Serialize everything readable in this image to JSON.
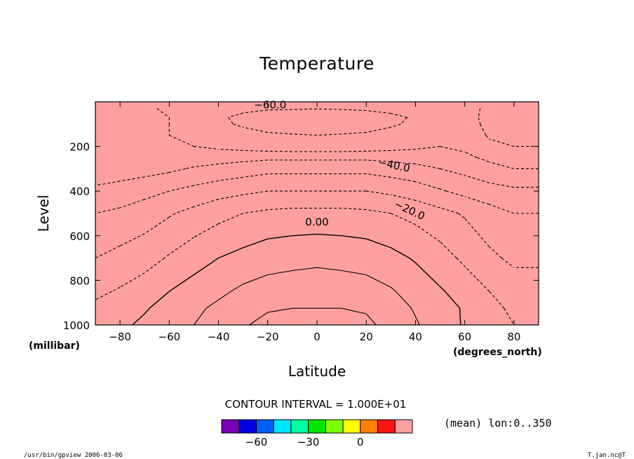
{
  "chart_data": {
    "type": "heatmap",
    "title": "Temperature",
    "xlabel": "Latitude",
    "ylabel": "Level",
    "x_unit": "(degrees_north)",
    "y_unit": "(millibar)",
    "xlim": [
      -90,
      90
    ],
    "ylim": [
      1000,
      0
    ],
    "x_ticks": [
      "-80",
      "-60",
      "-40",
      "-20",
      "0",
      "20",
      "40",
      "60",
      "80"
    ],
    "y_ticks": [
      "200",
      "400",
      "600",
      "800",
      "1000"
    ],
    "contour_interval": "CONTOUR INTERVAL = 1.000E+01",
    "contour_labels": [
      "-60.0",
      "-40.0",
      "-20.0",
      "0.00"
    ],
    "colorbar": {
      "colors": [
        "#7a00b4",
        "#0000e0",
        "#0060ff",
        "#00e6ff",
        "#00ffa0",
        "#00e600",
        "#80ff00",
        "#ffff00",
        "#ff8000",
        "#ff1414",
        "#ffa0a0"
      ],
      "tick_labels": [
        "-60",
        "-30",
        "0"
      ],
      "bounds": [
        -80,
        -70,
        -60,
        -50,
        -40,
        -30,
        -20,
        -10,
        0,
        10,
        20,
        30
      ]
    },
    "levels_mb": [
      30,
      70,
      100,
      150,
      200,
      250,
      300,
      400,
      500,
      700,
      850,
      925,
      1000
    ],
    "latitudes": [
      -90,
      -80,
      -70,
      -60,
      -50,
      -40,
      -30,
      -20,
      -10,
      0,
      10,
      20,
      30,
      40,
      50,
      60,
      70,
      80,
      90
    ],
    "values": [
      [
        -43,
        -46,
        -49,
        -51,
        -53,
        -55,
        -57,
        -58,
        -58,
        -59,
        -58,
        -57,
        -55,
        -53,
        -51,
        -55,
        -63,
        -66,
        -66
      ],
      [
        -44,
        -46,
        -48,
        -50,
        -53,
        -58,
        -63,
        -70,
        -75,
        -78,
        -75,
        -70,
        -64,
        -58,
        -53,
        -55,
        -64,
        -67,
        -67
      ],
      [
        -44,
        -46,
        -48,
        -50,
        -53,
        -57,
        -62,
        -66,
        -68,
        -69,
        -68,
        -66,
        -62,
        -57,
        -53,
        -55,
        -63,
        -66,
        -66
      ],
      [
        -45,
        -46,
        -48,
        -50,
        -52,
        -53,
        -55,
        -58,
        -59,
        -60,
        -59,
        -58,
        -55,
        -53,
        -52,
        -54,
        -61,
        -64,
        -64
      ],
      [
        -46,
        -46,
        -47,
        -48,
        -50,
        -52,
        -54,
        -56,
        -57,
        -57,
        -57,
        -56,
        -54,
        -52,
        -50,
        -52,
        -58,
        -60,
        -60
      ],
      [
        -48,
        -47,
        -47,
        -46,
        -45,
        -44,
        -43,
        -42,
        -42,
        -42,
        -42,
        -42,
        -43,
        -44,
        -45,
        -48,
        -52,
        -55,
        -55
      ],
      [
        -46,
        -45,
        -44,
        -42,
        -39,
        -37,
        -35,
        -33,
        -33,
        -33,
        -33,
        -33,
        -35,
        -37,
        -40,
        -43,
        -47,
        -50,
        -50
      ],
      [
        -38,
        -36,
        -33,
        -30,
        -27,
        -24,
        -22,
        -20,
        -20,
        -20,
        -20,
        -20,
        -22,
        -25,
        -29,
        -33,
        -36,
        -38,
        -38
      ],
      [
        -30,
        -28,
        -25,
        -21,
        -17,
        -13,
        -10,
        -8,
        -7,
        -7,
        -7,
        -8,
        -10,
        -13,
        -17,
        -21,
        -26,
        -30,
        -30
      ],
      [
        -20,
        -17,
        -14,
        -9,
        -4,
        0,
        3,
        6,
        7,
        8,
        7,
        6,
        3,
        -1,
        -6,
        -12,
        -18,
        -22,
        -22
      ],
      [
        -12,
        -9,
        -5,
        0,
        4,
        8,
        12,
        14,
        15,
        15,
        15,
        14,
        11,
        6,
        1,
        -4,
        -10,
        -15,
        -15
      ],
      [
        -8,
        -5,
        -1,
        4,
        8,
        12,
        16,
        19,
        20,
        20,
        20,
        19,
        15,
        9,
        4,
        -1,
        -7,
        -12,
        -12
      ],
      [
        -5,
        -2,
        2,
        6,
        10,
        15,
        19,
        23,
        24,
        25,
        24,
        22,
        17,
        11,
        5,
        -1,
        -6,
        -10,
        -10
      ]
    ]
  },
  "footer": {
    "left": "/usr/bin/gpview  2006-03-06",
    "right": "T.jan.nc@T",
    "mean": "(mean) lon:0..350"
  }
}
